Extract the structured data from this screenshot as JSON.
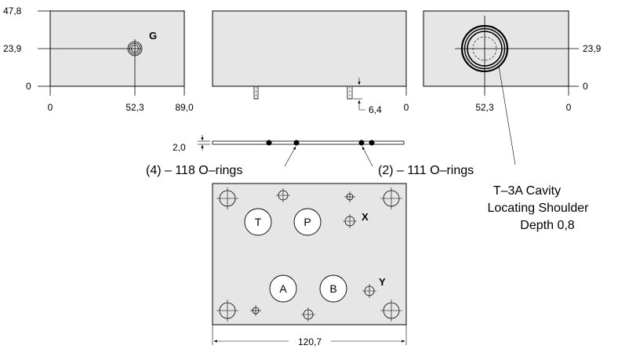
{
  "front_view": {
    "y_labels": [
      "47,8",
      "23,9",
      "0"
    ],
    "x_labels": [
      "0",
      "52,3",
      "89,0"
    ],
    "gauge_label": "G"
  },
  "middle_view": {
    "x_label": "0",
    "depth_label": "6,4"
  },
  "right_view": {
    "x_labels": [
      "52,3",
      "0"
    ],
    "y_labels": [
      "23,9",
      "0"
    ]
  },
  "gasket": {
    "thickness_label": "2,0",
    "oring_118_label": "(4) – 118 O–rings",
    "oring_111_label": "(2) – 111 O–rings"
  },
  "cavity_note": {
    "line1": "T–3A Cavity",
    "line2": "Locating Shoulder",
    "line3": "Depth 0,8"
  },
  "bottom_plate": {
    "ports": [
      "T",
      "P",
      "A",
      "B"
    ],
    "x_label": "X",
    "y_label": "Y",
    "width_label": "120,7"
  }
}
